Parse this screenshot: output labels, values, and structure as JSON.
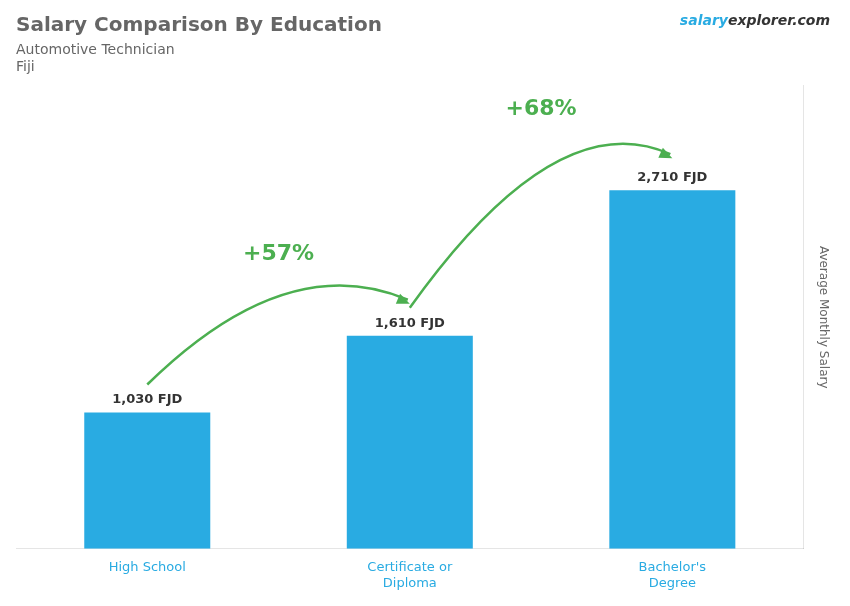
{
  "chart_data": {
    "type": "bar",
    "title": "Salary Comparison By Education",
    "subtitle": "Automotive Technician",
    "country": "Fiji",
    "watermark": [
      "salary",
      "explorer.com"
    ],
    "ylabel": "Average Monthly Salary",
    "categories": [
      "High School",
      "Certificate or\nDiploma",
      "Bachelor's\nDegree"
    ],
    "values": [
      1030,
      1610,
      2710
    ],
    "value_labels": [
      "1,030 FJD",
      "1,610 FJD",
      "2,710 FJD"
    ],
    "data_labels": true,
    "annotations": [
      "+57%",
      "+68%"
    ],
    "color": "#29abe2",
    "ylim": [
      0,
      3500
    ],
    "tick_labels": "x",
    "grid": false,
    "legend": false
  }
}
